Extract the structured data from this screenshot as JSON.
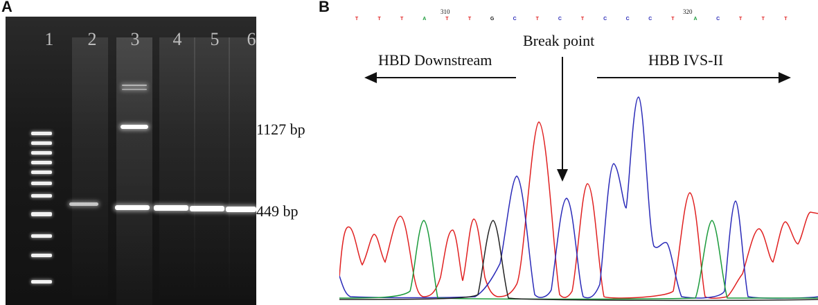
{
  "panels": {
    "a": "A",
    "b": "B"
  },
  "gel": {
    "lanes": [
      "1",
      "2",
      "3",
      "4",
      "5",
      "6"
    ],
    "size_labels": {
      "large": "1127 bp",
      "small": "449 bp"
    }
  },
  "sequence": {
    "bases": [
      "T",
      "T",
      "T",
      "A",
      "T",
      "T",
      "G",
      "C",
      "T",
      "C",
      "T",
      "C",
      "C",
      "C",
      "T",
      "A",
      "C",
      "T",
      "T",
      "T"
    ],
    "positions": [
      "310",
      "320"
    ],
    "colors": {
      "T": "#e02020",
      "A": "#1a9a3a",
      "G": "#111111",
      "C": "#2a2ab8"
    }
  },
  "annotations": {
    "break_point": "Break point",
    "left_region": "HBD Downstream",
    "right_region": "HBB IVS-II"
  }
}
